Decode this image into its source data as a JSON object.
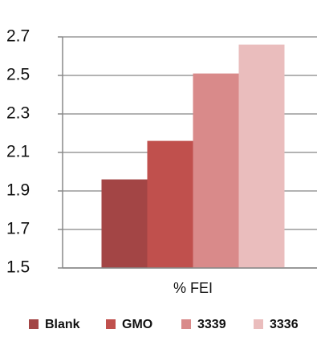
{
  "chart_data": {
    "type": "bar",
    "categories": [
      "% FEI"
    ],
    "series": [
      {
        "name": "Blank",
        "color": "#a34545",
        "values": [
          1.96
        ]
      },
      {
        "name": "GMO",
        "color": "#c0504d",
        "values": [
          2.16
        ]
      },
      {
        "name": "3339",
        "color": "#d98a8a",
        "values": [
          2.51
        ]
      },
      {
        "name": "3336",
        "color": "#eabdbd",
        "values": [
          2.66
        ]
      }
    ],
    "ylim": [
      1.5,
      2.7
    ],
    "yticks": [
      1.5,
      1.7,
      1.9,
      2.1,
      2.3,
      2.5,
      2.7
    ],
    "grid": true,
    "legend": "bottom"
  }
}
